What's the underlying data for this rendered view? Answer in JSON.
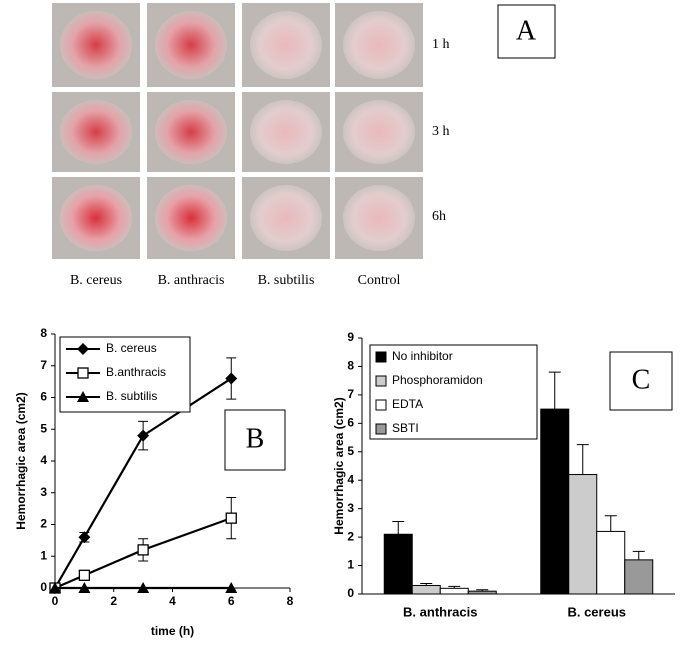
{
  "figure_a": {
    "label": "A",
    "rows": [
      "1 h",
      "3 h",
      "6h"
    ],
    "columns": [
      "B. cereus",
      "B. anthracis",
      "B. subtilis",
      "Control"
    ]
  },
  "chart_data": [
    {
      "type": "line",
      "label": "B",
      "xlabel": "time (h)",
      "ylabel": "Hemorrhagic area (cm2)",
      "xlim": [
        0,
        8
      ],
      "xticks": [
        0,
        2,
        4,
        6,
        8
      ],
      "ylim": [
        0,
        8
      ],
      "yticks": [
        0,
        1,
        2,
        3,
        4,
        5,
        6,
        7,
        8
      ],
      "legend": "upper left",
      "series": [
        {
          "name": "B. cereus",
          "color": "#000000",
          "marker": "diamond",
          "x": [
            0,
            1,
            3,
            6
          ],
          "values": [
            0,
            1.6,
            4.8,
            6.6
          ],
          "errors": [
            0,
            0.15,
            0.45,
            0.65
          ]
        },
        {
          "name": "B.anthracis",
          "color": "#000000",
          "marker": "square-open",
          "x": [
            0,
            1,
            3,
            6
          ],
          "values": [
            0,
            0.4,
            1.2,
            2.2
          ],
          "errors": [
            0,
            0.05,
            0.35,
            0.65
          ]
        },
        {
          "name": "B. subtilis",
          "color": "#000000",
          "marker": "triangle",
          "x": [
            0,
            1,
            3,
            6
          ],
          "values": [
            0,
            0,
            0,
            0
          ],
          "errors": [
            0,
            0,
            0,
            0
          ]
        }
      ]
    },
    {
      "type": "bar",
      "label": "C",
      "ylabel": "Hemorrhagic area (cm2)",
      "categories": [
        "B. anthracis",
        "B. cereus"
      ],
      "ylim": [
        0,
        9
      ],
      "yticks": [
        0,
        1,
        2,
        3,
        4,
        5,
        6,
        7,
        8,
        9
      ],
      "legend": "upper left",
      "series": [
        {
          "name": "No inhibitor",
          "color": "#000000",
          "values": [
            2.1,
            6.5
          ],
          "errors": [
            0.45,
            1.3
          ]
        },
        {
          "name": "Phosphoramidon",
          "color": "#cccccc",
          "values": [
            0.3,
            4.2
          ],
          "errors": [
            0.07,
            1.05
          ]
        },
        {
          "name": "EDTA",
          "color": "#ffffff",
          "values": [
            0.2,
            2.2
          ],
          "errors": [
            0.07,
            0.55
          ]
        },
        {
          "name": "SBTI",
          "color": "#999999",
          "values": [
            0.1,
            1.2
          ],
          "errors": [
            0.05,
            0.3
          ]
        }
      ]
    }
  ]
}
